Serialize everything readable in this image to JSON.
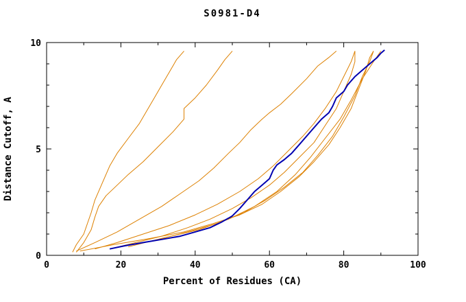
{
  "page": {
    "background": "#ffffff"
  },
  "chart_data": {
    "type": "line",
    "title": "S0981-D4",
    "xlabel": "Percent of Residues (CA)",
    "ylabel": "Distance Cutoff, A",
    "xlim": [
      0,
      100
    ],
    "ylim": [
      0,
      10
    ],
    "xticks": [
      0,
      20,
      40,
      60,
      80,
      100
    ],
    "yticks": [
      0,
      5,
      10
    ],
    "x_minor_step": 10,
    "y_minor_step": 1,
    "grid": false,
    "legend": "none",
    "colors": {
      "model_line": "#dd8000",
      "highlight_line": "#0000b0",
      "axis": "#000000"
    },
    "series": [
      {
        "name": "orange-1",
        "color": "#dd8000",
        "width": 1,
        "points": [
          [
            7,
            0.15
          ],
          [
            8,
            0.5
          ],
          [
            10,
            1.0
          ],
          [
            11,
            1.5
          ],
          [
            12,
            2.0
          ],
          [
            13,
            2.6
          ],
          [
            15,
            3.4
          ],
          [
            17,
            4.2
          ],
          [
            19,
            4.8
          ],
          [
            22,
            5.5
          ],
          [
            25,
            6.2
          ],
          [
            27,
            6.8
          ],
          [
            29,
            7.4
          ],
          [
            31,
            8.0
          ],
          [
            33,
            8.6
          ],
          [
            35,
            9.2
          ],
          [
            37,
            9.6
          ]
        ]
      },
      {
        "name": "orange-2",
        "color": "#dd8000",
        "width": 1,
        "points": [
          [
            8,
            0.15
          ],
          [
            10,
            0.6
          ],
          [
            12,
            1.2
          ],
          [
            13,
            1.8
          ],
          [
            14,
            2.3
          ],
          [
            16,
            2.8
          ],
          [
            19,
            3.3
          ],
          [
            22,
            3.8
          ],
          [
            26,
            4.4
          ],
          [
            30,
            5.1
          ],
          [
            34,
            5.8
          ],
          [
            37,
            6.4
          ],
          [
            37,
            6.9
          ],
          [
            40,
            7.4
          ],
          [
            43,
            8.0
          ],
          [
            46,
            8.7
          ],
          [
            48,
            9.2
          ],
          [
            50,
            9.6
          ]
        ]
      },
      {
        "name": "orange-3",
        "color": "#dd8000",
        "width": 1,
        "points": [
          [
            8,
            0.2
          ],
          [
            13,
            0.6
          ],
          [
            19,
            1.1
          ],
          [
            25,
            1.7
          ],
          [
            31,
            2.3
          ],
          [
            36,
            2.9
          ],
          [
            41,
            3.5
          ],
          [
            45,
            4.1
          ],
          [
            49,
            4.8
          ],
          [
            52,
            5.3
          ],
          [
            55,
            5.9
          ],
          [
            58,
            6.4
          ],
          [
            60,
            6.7
          ],
          [
            63,
            7.1
          ],
          [
            66,
            7.6
          ],
          [
            70,
            8.3
          ],
          [
            73,
            8.9
          ],
          [
            76,
            9.3
          ],
          [
            78,
            9.6
          ]
        ]
      },
      {
        "name": "orange-4",
        "color": "#dd8000",
        "width": 1,
        "points": [
          [
            13,
            0.3
          ],
          [
            19,
            0.6
          ],
          [
            26,
            1.0
          ],
          [
            33,
            1.4
          ],
          [
            40,
            1.9
          ],
          [
            46,
            2.4
          ],
          [
            52,
            3.0
          ],
          [
            57,
            3.6
          ],
          [
            61,
            4.2
          ],
          [
            65,
            4.9
          ],
          [
            69,
            5.6
          ],
          [
            72,
            6.2
          ],
          [
            75,
            6.9
          ],
          [
            78,
            7.7
          ],
          [
            80,
            8.4
          ],
          [
            82,
            9.1
          ],
          [
            83,
            9.6
          ]
        ]
      },
      {
        "name": "orange-5",
        "color": "#dd8000",
        "width": 1,
        "points": [
          [
            17,
            0.3
          ],
          [
            24,
            0.6
          ],
          [
            31,
            0.9
          ],
          [
            38,
            1.3
          ],
          [
            44,
            1.7
          ],
          [
            50,
            2.2
          ],
          [
            55,
            2.7
          ],
          [
            60,
            3.3
          ],
          [
            64,
            3.9
          ],
          [
            68,
            4.6
          ],
          [
            72,
            5.3
          ],
          [
            75,
            6.1
          ],
          [
            78,
            6.9
          ],
          [
            80,
            7.7
          ],
          [
            82,
            8.5
          ],
          [
            83,
            9.1
          ],
          [
            83,
            9.6
          ]
        ]
      },
      {
        "name": "orange-6",
        "color": "#dd8000",
        "width": 1,
        "points": [
          [
            9,
            0.2
          ],
          [
            18,
            0.5
          ],
          [
            28,
            0.8
          ],
          [
            37,
            1.1
          ],
          [
            45,
            1.5
          ],
          [
            52,
            1.9
          ],
          [
            58,
            2.4
          ],
          [
            63,
            3.0
          ],
          [
            68,
            3.7
          ],
          [
            72,
            4.4
          ],
          [
            76,
            5.2
          ],
          [
            79,
            6.0
          ],
          [
            82,
            6.9
          ],
          [
            84,
            7.8
          ],
          [
            86,
            8.7
          ],
          [
            87,
            9.3
          ],
          [
            88,
            9.6
          ]
        ]
      },
      {
        "name": "orange-7",
        "color": "#dd8000",
        "width": 1,
        "points": [
          [
            20,
            0.4
          ],
          [
            29,
            0.7
          ],
          [
            38,
            1.1
          ],
          [
            46,
            1.5
          ],
          [
            53,
            2.0
          ],
          [
            59,
            2.6
          ],
          [
            64,
            3.2
          ],
          [
            69,
            3.9
          ],
          [
            73,
            4.7
          ],
          [
            77,
            5.6
          ],
          [
            80,
            6.5
          ],
          [
            83,
            7.5
          ],
          [
            85,
            8.4
          ],
          [
            87,
            9.1
          ],
          [
            88,
            9.6
          ]
        ]
      },
      {
        "name": "orange-8",
        "color": "#dd8000",
        "width": 1,
        "points": [
          [
            22,
            0.4
          ],
          [
            31,
            0.8
          ],
          [
            41,
            1.2
          ],
          [
            49,
            1.7
          ],
          [
            56,
            2.3
          ],
          [
            62,
            3.0
          ],
          [
            67,
            3.8
          ],
          [
            71,
            4.6
          ],
          [
            75,
            5.5
          ],
          [
            79,
            6.4
          ],
          [
            82,
            7.3
          ],
          [
            85,
            8.3
          ],
          [
            88,
            9.1
          ],
          [
            90,
            9.6
          ]
        ]
      },
      {
        "name": "blue-highlight",
        "color": "#0000b0",
        "width": 2,
        "points": [
          [
            17,
            0.3
          ],
          [
            21,
            0.45
          ],
          [
            26,
            0.6
          ],
          [
            31,
            0.75
          ],
          [
            36,
            0.9
          ],
          [
            40,
            1.1
          ],
          [
            44,
            1.3
          ],
          [
            47,
            1.55
          ],
          [
            49,
            1.75
          ],
          [
            50,
            1.85
          ],
          [
            52,
            2.2
          ],
          [
            54,
            2.6
          ],
          [
            56,
            3.0
          ],
          [
            58,
            3.3
          ],
          [
            60,
            3.6
          ],
          [
            61,
            4.0
          ],
          [
            62,
            4.25
          ],
          [
            64,
            4.5
          ],
          [
            66,
            4.8
          ],
          [
            68,
            5.2
          ],
          [
            70,
            5.6
          ],
          [
            72,
            6.0
          ],
          [
            74,
            6.4
          ],
          [
            76,
            6.7
          ],
          [
            77,
            7.0
          ],
          [
            78,
            7.4
          ],
          [
            80,
            7.7
          ],
          [
            81,
            8.0
          ],
          [
            83,
            8.4
          ],
          [
            85,
            8.7
          ],
          [
            87,
            9.0
          ],
          [
            89,
            9.3
          ],
          [
            90,
            9.5
          ],
          [
            91,
            9.65
          ]
        ]
      }
    ]
  }
}
